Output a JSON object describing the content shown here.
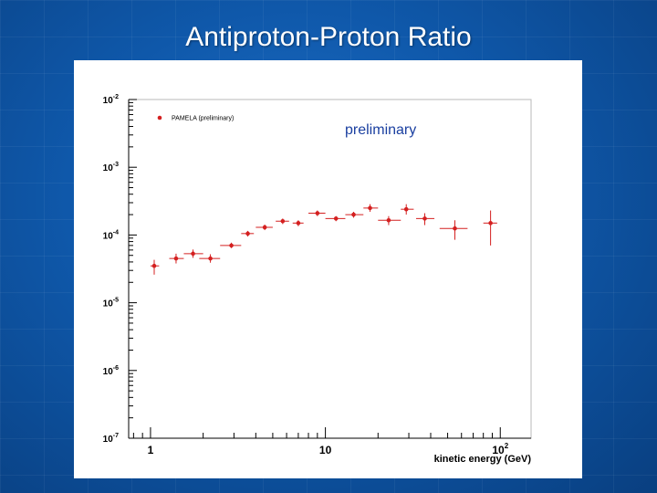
{
  "slide": {
    "title": "Antiproton-Proton Ratio"
  },
  "chart_data": {
    "type": "scatter",
    "title": "",
    "xlabel": "kinetic energy  (GeV)",
    "ylabel": "",
    "x_scale": "log",
    "y_scale": "log",
    "xlim": [
      0.75,
      150
    ],
    "ylim": [
      1e-07,
      0.01
    ],
    "x_tick_labels": [
      {
        "value": 1,
        "label": "1"
      },
      {
        "value": 10,
        "label": "10"
      },
      {
        "value": 100,
        "label": "10",
        "sup": "2"
      }
    ],
    "y_tick_labels": [
      {
        "value": 0.01,
        "base": "10",
        "sup": "-2"
      },
      {
        "value": 0.001,
        "base": "10",
        "sup": "-3"
      },
      {
        "value": 0.0001,
        "base": "10",
        "sup": "-4"
      },
      {
        "value": 1e-05,
        "base": "10",
        "sup": "-5"
      },
      {
        "value": 1e-06,
        "base": "10",
        "sup": "-6"
      },
      {
        "value": 1e-07,
        "base": "10",
        "sup": "-7"
      }
    ],
    "annotation": "preliminary",
    "legend_position": "top-left",
    "grid": false,
    "marker_color": "#d42020",
    "series": [
      {
        "name": "PAMELA (preliminary)",
        "points": [
          {
            "x": 1.05,
            "y": 3.5e-05,
            "xlo": 1.0,
            "xhi": 1.12,
            "ylo": 2.6e-05,
            "yhi": 4.3e-05
          },
          {
            "x": 1.4,
            "y": 4.5e-05,
            "xlo": 1.28,
            "xhi": 1.55,
            "ylo": 3.8e-05,
            "yhi": 5.3e-05
          },
          {
            "x": 1.75,
            "y": 5.3e-05,
            "xlo": 1.55,
            "xhi": 2.0,
            "ylo": 4.6e-05,
            "yhi": 6.1e-05
          },
          {
            "x": 2.2,
            "y": 4.5e-05,
            "xlo": 1.9,
            "xhi": 2.5,
            "ylo": 3.9e-05,
            "yhi": 5.2e-05
          },
          {
            "x": 2.9,
            "y": 7e-05,
            "xlo": 2.5,
            "xhi": 3.3,
            "ylo": 6.4e-05,
            "yhi": 7.7e-05
          },
          {
            "x": 3.6,
            "y": 0.000105,
            "xlo": 3.3,
            "xhi": 3.9,
            "ylo": 9.5e-05,
            "yhi": 0.000115
          },
          {
            "x": 4.5,
            "y": 0.00013,
            "xlo": 4.0,
            "xhi": 5.0,
            "ylo": 0.000118,
            "yhi": 0.000142
          },
          {
            "x": 5.7,
            "y": 0.00016,
            "xlo": 5.2,
            "xhi": 6.2,
            "ylo": 0.000145,
            "yhi": 0.000175
          },
          {
            "x": 7.0,
            "y": 0.00015,
            "xlo": 6.5,
            "xhi": 7.5,
            "ylo": 0.000135,
            "yhi": 0.000165
          },
          {
            "x": 9.0,
            "y": 0.00021,
            "xlo": 8.0,
            "xhi": 10.0,
            "ylo": 0.00019,
            "yhi": 0.00023
          },
          {
            "x": 11.5,
            "y": 0.000175,
            "xlo": 10.0,
            "xhi": 13.0,
            "ylo": 0.00016,
            "yhi": 0.00019
          },
          {
            "x": 14.5,
            "y": 0.0002,
            "xlo": 13.0,
            "xhi": 16.5,
            "ylo": 0.00018,
            "yhi": 0.00022
          },
          {
            "x": 18.0,
            "y": 0.00025,
            "xlo": 16.5,
            "xhi": 20.0,
            "ylo": 0.00022,
            "yhi": 0.000285
          },
          {
            "x": 23.0,
            "y": 0.000165,
            "xlo": 20.0,
            "xhi": 27.0,
            "ylo": 0.00014,
            "yhi": 0.00019
          },
          {
            "x": 29.0,
            "y": 0.00024,
            "xlo": 27.0,
            "xhi": 32.0,
            "ylo": 0.0002,
            "yhi": 0.000285
          },
          {
            "x": 37.0,
            "y": 0.000175,
            "xlo": 33.0,
            "xhi": 42.0,
            "ylo": 0.00014,
            "yhi": 0.00021
          },
          {
            "x": 55.0,
            "y": 0.000125,
            "xlo": 45.0,
            "xhi": 65.0,
            "ylo": 8.5e-05,
            "yhi": 0.000165
          },
          {
            "x": 88.0,
            "y": 0.00015,
            "xlo": 80.0,
            "xhi": 96.0,
            "ylo": 7e-05,
            "yhi": 0.00023
          }
        ]
      }
    ]
  }
}
